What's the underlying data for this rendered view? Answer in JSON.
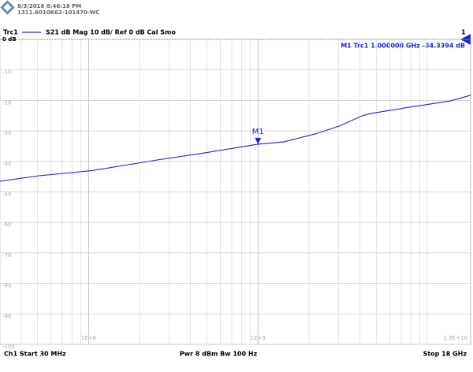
{
  "header": {
    "timestamp": "8/3/2016 8:46:18 PM",
    "device": "1311.6010K62-101470-WC"
  },
  "trace_info": {
    "trace": "Trc1",
    "settings": "S21  dB Mag  10 dB/ Ref 0 dB  Cal Smo",
    "channel_tag": "1"
  },
  "marker_readout": "M1  Trc1  1.000000 GHz  -34.3394 dB",
  "footer": {
    "start": "Ch1  Start  30 MHz",
    "power": "Pwr  8 dBm  Bw  100 Hz",
    "stop": "Stop  18 GHz"
  },
  "chart_data": {
    "type": "line",
    "log_x": true,
    "grid": true,
    "xlim": [
      30000000,
      18000000000
    ],
    "ylim": [
      -100,
      0
    ],
    "xticks": [
      {
        "value": 100000000,
        "label": "1E+8"
      },
      {
        "value": 1000000000,
        "label": "1E+9"
      },
      {
        "value": 18000000000,
        "label": "1.8E+10"
      }
    ],
    "xgrid_minor": [
      40000000,
      50000000,
      60000000,
      70000000,
      80000000,
      90000000,
      200000000,
      300000000,
      400000000,
      500000000,
      600000000,
      700000000,
      800000000,
      900000000,
      2000000000,
      3000000000,
      4000000000,
      5000000000,
      6000000000,
      7000000000,
      8000000000,
      9000000000,
      10000000000
    ],
    "yticks": [
      {
        "value": 0,
        "label": "0 dB"
      },
      -10,
      -20,
      -30,
      -40,
      -50,
      -60,
      -70,
      -80,
      -90,
      -100
    ],
    "series": [
      {
        "name": "Trc1",
        "color": "#2020e0",
        "x": [
          30000000,
          51000000,
          105000000,
          256000000,
          486000000,
          1000000000,
          1420000000,
          2180000000,
          3020000000,
          4140000000,
          4620000000,
          7870000000,
          13600000000,
          18000000000
        ],
        "values": [
          -46.5,
          -44.7,
          -43,
          -39.5,
          -37.2,
          -34.34,
          -33.6,
          -31,
          -28.4,
          -25,
          -24.3,
          -22.2,
          -20.2,
          -18.3
        ]
      }
    ],
    "markers": [
      {
        "label": "M1",
        "x": 1000000000,
        "y": -34.3394
      }
    ]
  }
}
